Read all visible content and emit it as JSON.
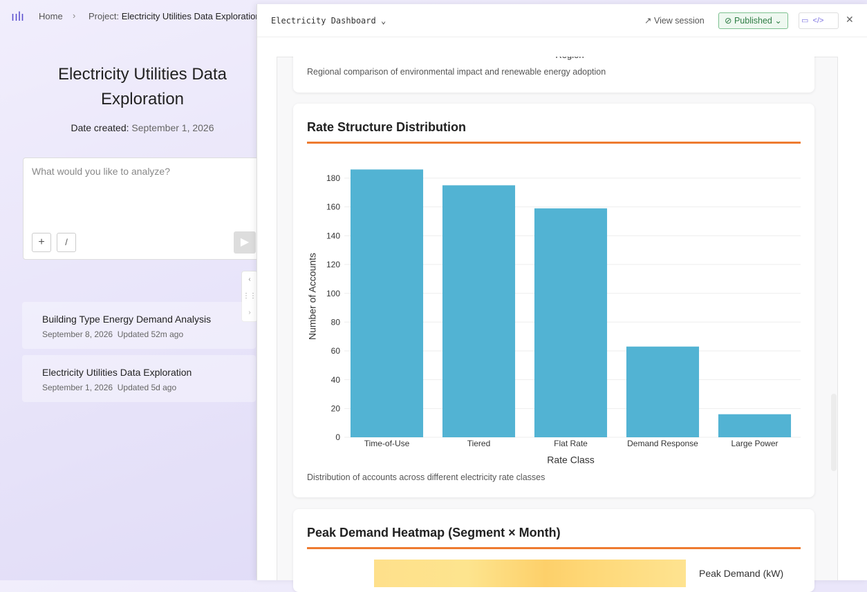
{
  "breadcrumb": {
    "home": "Home",
    "project_label": "Project:",
    "project_name": "Electricity Utilities Data Exploration"
  },
  "project": {
    "title": "Electricity Utilities Data Exploration",
    "date_label": "Date created:",
    "date": "September 1, 2026",
    "placeholder": "What would you like to analyze?",
    "slash": "/"
  },
  "sessions": [
    {
      "title": "Building Type Energy Demand Analysis",
      "date": "September 8, 2026",
      "updated": "Updated 52m ago"
    },
    {
      "title": "Electricity Utilities Data Exploration",
      "date": "September 1, 2026",
      "updated": "Updated 5d ago"
    }
  ],
  "panel": {
    "title": "Electricity Dashboard",
    "view_session": "View session",
    "status": "Published"
  },
  "cards": [
    {
      "title": "Region",
      "caption": "Regional comparison of environmental impact and renewable energy adoption"
    },
    {
      "title": "Rate Structure Distribution",
      "caption": "Distribution of accounts across different electricity rate classes"
    },
    {
      "title": "Peak Demand Heatmap (Segment × Month)",
      "colorbar_label": "Peak Demand (kW)"
    }
  ],
  "chart_data": {
    "type": "bar",
    "categories": [
      "Time-of-Use",
      "Tiered",
      "Flat Rate",
      "Demand Response",
      "Large Power"
    ],
    "values": [
      186,
      175,
      159,
      63,
      16
    ],
    "color": "#52b3d3",
    "xlabel": "Rate Class",
    "ylabel": "Number of Accounts",
    "ylim": [
      0,
      190
    ],
    "yticks": [
      0,
      20,
      40,
      60,
      80,
      100,
      120,
      140,
      160,
      180
    ],
    "grid": true
  }
}
